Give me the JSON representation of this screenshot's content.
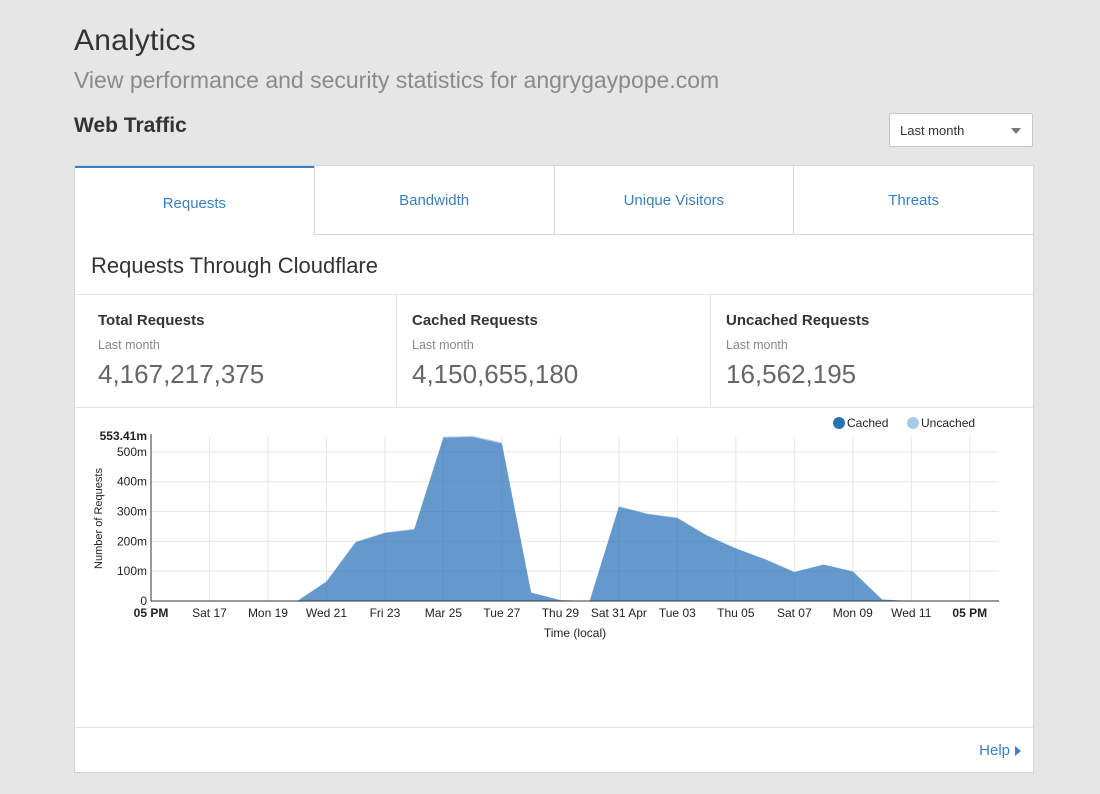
{
  "header": {
    "title": "Analytics",
    "subtitle": "View performance and security statistics for angrygaypope.com"
  },
  "section": {
    "title": "Web Traffic",
    "range_select": "Last month"
  },
  "tabs": [
    {
      "label": "Requests",
      "active": true
    },
    {
      "label": "Bandwidth",
      "active": false
    },
    {
      "label": "Unique Visitors",
      "active": false
    },
    {
      "label": "Threats",
      "active": false
    }
  ],
  "panel": {
    "heading": "Requests Through Cloudflare",
    "stats": [
      {
        "label": "Total Requests",
        "period": "Last month",
        "value": "4,167,217,375"
      },
      {
        "label": "Cached Requests",
        "period": "Last month",
        "value": "4,150,655,180"
      },
      {
        "label": "Uncached Requests",
        "period": "Last month",
        "value": "16,562,195"
      }
    ],
    "help": "Help"
  },
  "chart_data": {
    "type": "area",
    "stacked": true,
    "max_label": "553.41m",
    "xlabel": "Time (local)",
    "ylabel": "Number of Requests",
    "ylim": [
      0,
      553.41
    ],
    "yticks": [
      {
        "v": 0,
        "label": "0"
      },
      {
        "v": 100,
        "label": "100m"
      },
      {
        "v": 200,
        "label": "200m"
      },
      {
        "v": 300,
        "label": "300m"
      },
      {
        "v": 400,
        "label": "400m"
      },
      {
        "v": 500,
        "label": "500m"
      }
    ],
    "xticks": [
      {
        "day": 0,
        "label": "05 PM",
        "bold": true
      },
      {
        "day": 2,
        "label": "Sat 17",
        "bold": false
      },
      {
        "day": 4,
        "label": "Mon 19",
        "bold": false
      },
      {
        "day": 6,
        "label": "Wed 21",
        "bold": false
      },
      {
        "day": 8,
        "label": "Fri 23",
        "bold": false
      },
      {
        "day": 10,
        "label": "Mar 25",
        "bold": false
      },
      {
        "day": 12,
        "label": "Tue 27",
        "bold": false
      },
      {
        "day": 14,
        "label": "Thu 29",
        "bold": false
      },
      {
        "day": 16,
        "label": "Sat 31 Apr",
        "bold": false
      },
      {
        "day": 18,
        "label": "Tue 03",
        "bold": false
      },
      {
        "day": 20,
        "label": "Thu 05",
        "bold": false
      },
      {
        "day": 22,
        "label": "Sat 07",
        "bold": false
      },
      {
        "day": 24,
        "label": "Mon 09",
        "bold": false
      },
      {
        "day": 26,
        "label": "Wed 11",
        "bold": false
      },
      {
        "day": 28,
        "label": "05 PM",
        "bold": true
      }
    ],
    "x_day_max": 29,
    "series": [
      {
        "name": "Cached",
        "color": "#2a72b8",
        "points": [
          [
            0,
            0
          ],
          [
            1,
            0
          ],
          [
            2,
            0
          ],
          [
            3,
            0
          ],
          [
            4,
            0
          ],
          [
            5,
            0
          ],
          [
            6,
            65
          ],
          [
            7,
            197
          ],
          [
            8,
            228
          ],
          [
            9,
            240
          ],
          [
            10,
            548
          ],
          [
            11,
            550
          ],
          [
            12,
            528
          ],
          [
            13,
            28
          ],
          [
            14,
            3
          ],
          [
            15,
            0
          ],
          [
            16,
            316
          ],
          [
            17,
            291
          ],
          [
            18,
            278
          ],
          [
            19,
            220
          ],
          [
            20,
            176
          ],
          [
            21,
            140
          ],
          [
            22,
            97
          ],
          [
            23,
            122
          ],
          [
            24,
            99
          ],
          [
            25,
            5
          ],
          [
            26,
            0
          ],
          [
            27,
            0
          ],
          [
            28,
            0
          ],
          [
            29,
            0
          ]
        ]
      },
      {
        "name": "Uncached",
        "color": "#a8cbe8",
        "points": [
          [
            0,
            0
          ],
          [
            1,
            0
          ],
          [
            2,
            0
          ],
          [
            3,
            0
          ],
          [
            4,
            0
          ],
          [
            5,
            0
          ],
          [
            6,
            1
          ],
          [
            7,
            2
          ],
          [
            8,
            2
          ],
          [
            9,
            2
          ],
          [
            10,
            3
          ],
          [
            11,
            4
          ],
          [
            12,
            4
          ],
          [
            13,
            1
          ],
          [
            14,
            0
          ],
          [
            15,
            0
          ],
          [
            16,
            2
          ],
          [
            17,
            2
          ],
          [
            18,
            2
          ],
          [
            19,
            1
          ],
          [
            20,
            1
          ],
          [
            21,
            1
          ],
          [
            22,
            1
          ],
          [
            23,
            1
          ],
          [
            24,
            1
          ],
          [
            25,
            0
          ],
          [
            26,
            0
          ],
          [
            27,
            0
          ],
          [
            28,
            0
          ],
          [
            29,
            0
          ]
        ]
      }
    ],
    "legend_position": "top-right"
  }
}
